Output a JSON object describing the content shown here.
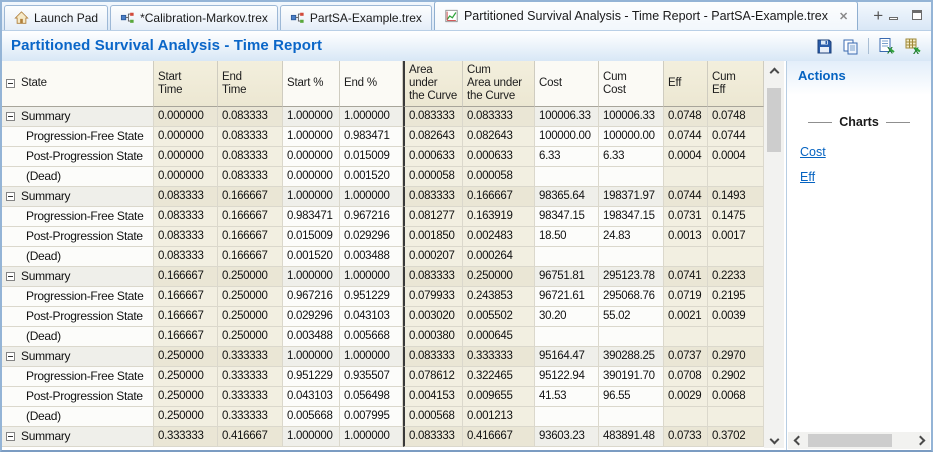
{
  "tabs": [
    {
      "label": "Launch Pad",
      "icon": "home-icon"
    },
    {
      "label": "*Calibration-Markov.trex",
      "icon": "tree-doc-icon"
    },
    {
      "label": "PartSA-Example.trex",
      "icon": "tree-doc-icon"
    },
    {
      "label": "Partitioned Survival Analysis - Time Report - PartSA-Example.trex",
      "icon": "chart-doc-icon",
      "close_glyph": "✕"
    }
  ],
  "new_tab_glyph": "+",
  "header": {
    "title": "Partitioned Survival Analysis - Time Report",
    "toolbar_icons": [
      "save-icon",
      "copy-icon",
      "export-report-icon",
      "export-excel-icon"
    ]
  },
  "table": {
    "columns": [
      "State",
      "Start\nTime",
      "End\nTime",
      "Start %",
      "End %",
      "Area under\nthe Curve",
      "Cum\nArea under\nthe Curve",
      "Cost",
      "Cum\nCost",
      "Eff",
      "Cum\nEff"
    ],
    "rows": [
      {
        "state": "Summary",
        "summary": true,
        "values": [
          "0.000000",
          "0.083333",
          "1.000000",
          "1.000000",
          "0.083333",
          "0.083333",
          "100006.33",
          "100006.33",
          "0.0748",
          "0.0748"
        ]
      },
      {
        "state": "Progression-Free State",
        "summary": false,
        "values": [
          "0.000000",
          "0.083333",
          "1.000000",
          "0.983471",
          "0.082643",
          "0.082643",
          "100000.00",
          "100000.00",
          "0.0744",
          "0.0744"
        ]
      },
      {
        "state": "Post-Progression State",
        "summary": false,
        "values": [
          "0.000000",
          "0.083333",
          "0.000000",
          "0.015009",
          "0.000633",
          "0.000633",
          "6.33",
          "6.33",
          "0.0004",
          "0.0004"
        ]
      },
      {
        "state": "(Dead)",
        "summary": false,
        "values": [
          "0.000000",
          "0.083333",
          "0.000000",
          "0.001520",
          "0.000058",
          "0.000058",
          "",
          "",
          "",
          ""
        ]
      },
      {
        "state": "Summary",
        "summary": true,
        "values": [
          "0.083333",
          "0.166667",
          "1.000000",
          "1.000000",
          "0.083333",
          "0.166667",
          "98365.64",
          "198371.97",
          "0.0744",
          "0.1493"
        ]
      },
      {
        "state": "Progression-Free State",
        "summary": false,
        "values": [
          "0.083333",
          "0.166667",
          "0.983471",
          "0.967216",
          "0.081277",
          "0.163919",
          "98347.15",
          "198347.15",
          "0.0731",
          "0.1475"
        ]
      },
      {
        "state": "Post-Progression State",
        "summary": false,
        "values": [
          "0.083333",
          "0.166667",
          "0.015009",
          "0.029296",
          "0.001850",
          "0.002483",
          "18.50",
          "24.83",
          "0.0013",
          "0.0017"
        ]
      },
      {
        "state": "(Dead)",
        "summary": false,
        "values": [
          "0.083333",
          "0.166667",
          "0.001520",
          "0.003488",
          "0.000207",
          "0.000264",
          "",
          "",
          "",
          ""
        ]
      },
      {
        "state": "Summary",
        "summary": true,
        "values": [
          "0.166667",
          "0.250000",
          "1.000000",
          "1.000000",
          "0.083333",
          "0.250000",
          "96751.81",
          "295123.78",
          "0.0741",
          "0.2233"
        ]
      },
      {
        "state": "Progression-Free State",
        "summary": false,
        "values": [
          "0.166667",
          "0.250000",
          "0.967216",
          "0.951229",
          "0.079933",
          "0.243853",
          "96721.61",
          "295068.76",
          "0.0719",
          "0.2195"
        ]
      },
      {
        "state": "Post-Progression State",
        "summary": false,
        "values": [
          "0.166667",
          "0.250000",
          "0.029296",
          "0.043103",
          "0.003020",
          "0.005502",
          "30.20",
          "55.02",
          "0.0021",
          "0.0039"
        ]
      },
      {
        "state": "(Dead)",
        "summary": false,
        "values": [
          "0.166667",
          "0.250000",
          "0.003488",
          "0.005668",
          "0.000380",
          "0.000645",
          "",
          "",
          "",
          ""
        ]
      },
      {
        "state": "Summary",
        "summary": true,
        "values": [
          "0.250000",
          "0.333333",
          "1.000000",
          "1.000000",
          "0.083333",
          "0.333333",
          "95164.47",
          "390288.25",
          "0.0737",
          "0.2970"
        ]
      },
      {
        "state": "Progression-Free State",
        "summary": false,
        "values": [
          "0.250000",
          "0.333333",
          "0.951229",
          "0.935507",
          "0.078612",
          "0.322465",
          "95122.94",
          "390191.70",
          "0.0708",
          "0.2902"
        ]
      },
      {
        "state": "Post-Progression State",
        "summary": false,
        "values": [
          "0.250000",
          "0.333333",
          "0.043103",
          "0.056498",
          "0.004153",
          "0.009655",
          "41.53",
          "96.55",
          "0.0029",
          "0.0068"
        ]
      },
      {
        "state": "(Dead)",
        "summary": false,
        "values": [
          "0.250000",
          "0.333333",
          "0.005668",
          "0.007995",
          "0.000568",
          "0.001213",
          "",
          "",
          "",
          ""
        ]
      },
      {
        "state": "Summary",
        "summary": true,
        "values": [
          "0.333333",
          "0.416667",
          "1.000000",
          "1.000000",
          "0.083333",
          "0.416667",
          "93603.23",
          "483891.48",
          "0.0733",
          "0.3702"
        ]
      }
    ]
  },
  "panel": {
    "title": "Actions",
    "section": "Charts",
    "links": [
      "Cost",
      "Eff"
    ]
  },
  "colors": {
    "accent_blue": "#0a66c8",
    "link_blue": "#0563c1",
    "band_beige": "#f2efe1",
    "window_border": "#94b4d6"
  }
}
